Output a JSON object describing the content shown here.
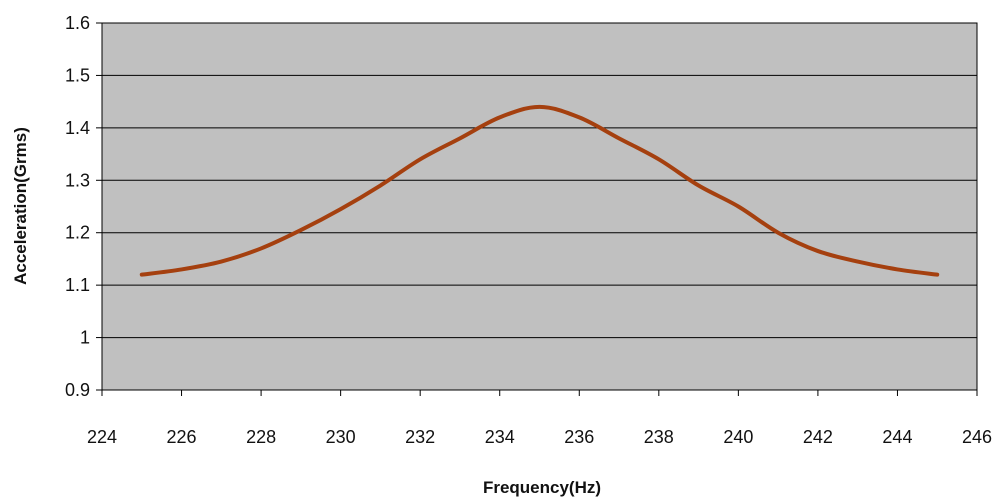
{
  "chart_data": {
    "type": "line",
    "title": "",
    "xlabel": "Frequency(Hz)",
    "ylabel": "Acceleration(Grms)",
    "xlim": [
      224,
      246
    ],
    "ylim": [
      0.9,
      1.6
    ],
    "x_ticks": [
      "224",
      "226",
      "228",
      "230",
      "232",
      "234",
      "236",
      "238",
      "240",
      "242",
      "244",
      "246"
    ],
    "y_ticks": [
      "0.9",
      "1",
      "1.1",
      "1.2",
      "1.3",
      "1.4",
      "1.5",
      "1.6"
    ],
    "grid": "horizontal",
    "legend": "none",
    "plot_background": "#c0c0c0",
    "series": [
      {
        "color": "#a5400f",
        "x": [
          225,
          226,
          227,
          228,
          229,
          230,
          231,
          232,
          233,
          234,
          235,
          236,
          237,
          238,
          239,
          240,
          241,
          242,
          243,
          244,
          245
        ],
        "y": [
          1.12,
          1.13,
          1.145,
          1.17,
          1.205,
          1.245,
          1.29,
          1.34,
          1.38,
          1.42,
          1.44,
          1.42,
          1.38,
          1.34,
          1.29,
          1.25,
          1.2,
          1.165,
          1.145,
          1.13,
          1.12
        ]
      }
    ]
  }
}
